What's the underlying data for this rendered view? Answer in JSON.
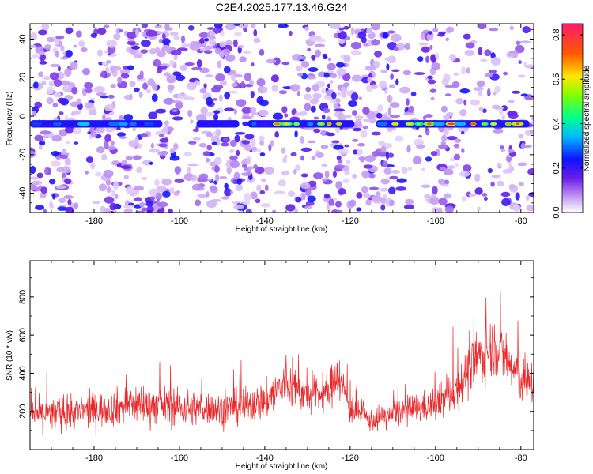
{
  "title": "C2E4.2025.177.13.46.G24",
  "chart_data": [
    {
      "type": "heatmap",
      "xlabel": "Height of straight line (km)",
      "ylabel": "Frequency (Hz)",
      "xlim": [
        -195,
        -77
      ],
      "ylim": [
        -50,
        48
      ],
      "xticks": [
        -180,
        -160,
        -140,
        -120,
        -100,
        -80
      ],
      "yticks": [
        -40,
        -20,
        0,
        20,
        40
      ],
      "colorbar": {
        "label": "Normalized spectral amplitude",
        "range": [
          0.0,
          0.85
        ],
        "ticks": [
          "0.0",
          "0.2",
          "0.4",
          "0.6",
          "0.8"
        ]
      },
      "ridge": {
        "frequency_hz": -4,
        "segments": [
          {
            "x": [
              -195,
              -164
            ],
            "peak": 0.55
          },
          {
            "x": [
              -156,
              -146
            ],
            "peak": 0.3
          },
          {
            "x": [
              -144,
              -119
            ],
            "peak": 0.75
          },
          {
            "x": [
              -114,
              -78
            ],
            "peak": 0.85
          }
        ]
      }
    },
    {
      "type": "line",
      "xlabel": "Height of straight line (km)",
      "ylabel": "SNR (10 * v/v)",
      "xlim": [
        -195,
        -77
      ],
      "ylim": [
        0,
        990
      ],
      "xticks": [
        -180,
        -160,
        -140,
        -120,
        -100,
        -80
      ],
      "yticks": [
        200,
        400,
        600,
        800
      ],
      "line_color": "#e8282a",
      "envelope": {
        "x": [
          -195,
          -185,
          -175,
          -170,
          -160,
          -150,
          -140,
          -135,
          -130,
          -125,
          -123,
          -120,
          -115,
          -110,
          -100,
          -95,
          -90,
          -86,
          -82,
          -79,
          -77
        ],
        "mean": [
          180,
          190,
          220,
          240,
          220,
          210,
          250,
          350,
          280,
          300,
          420,
          210,
          150,
          190,
          230,
          320,
          480,
          550,
          420,
          340,
          350
        ],
        "spread": [
          150,
          150,
          170,
          190,
          170,
          160,
          180,
          220,
          170,
          170,
          260,
          130,
          100,
          130,
          150,
          210,
          260,
          280,
          220,
          230,
          220
        ]
      }
    }
  ]
}
